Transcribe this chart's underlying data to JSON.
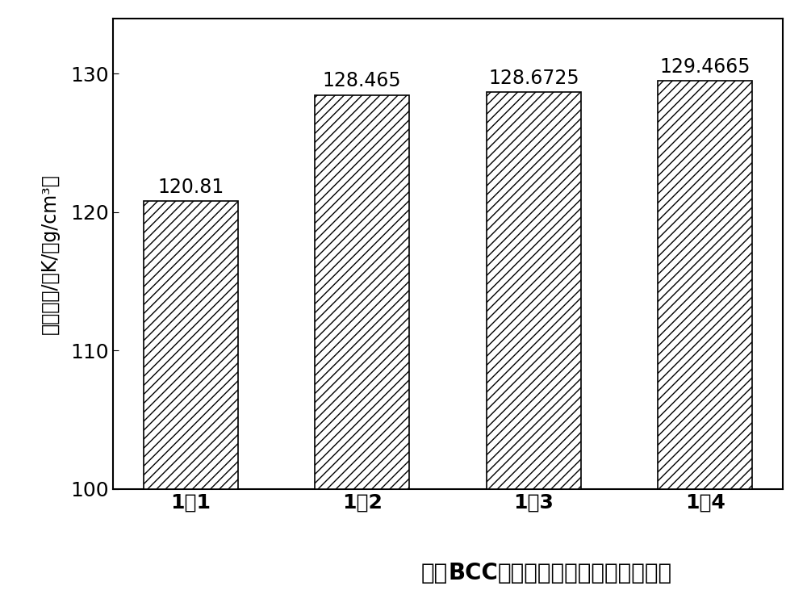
{
  "categories": [
    "1：1",
    "1：2",
    "1：3",
    "1：4"
  ],
  "values": [
    120.81,
    128.465,
    128.6725,
    129.4665
  ],
  "bar_labels": [
    "120.81",
    "128.465",
    "128.6725",
    "129.4665"
  ],
  "ylabel": "隔热系数/（K/（g/cm³）",
  "xlabel_part1": "外围",
  "xlabel_part2": "BCC",
  "xlabel_part3": "单胞与内部正八面体单胞比值",
  "ylim": [
    100,
    134
  ],
  "yticks": [
    100,
    110,
    120,
    130
  ],
  "bar_color": "white",
  "bar_edgecolor": "black",
  "hatch": "///",
  "bar_width": 0.55,
  "tick_fontsize": 18,
  "value_fontsize": 17,
  "xlabel_fontsize": 20,
  "ylabel_fontsize": 17,
  "spine_linewidth": 1.5
}
